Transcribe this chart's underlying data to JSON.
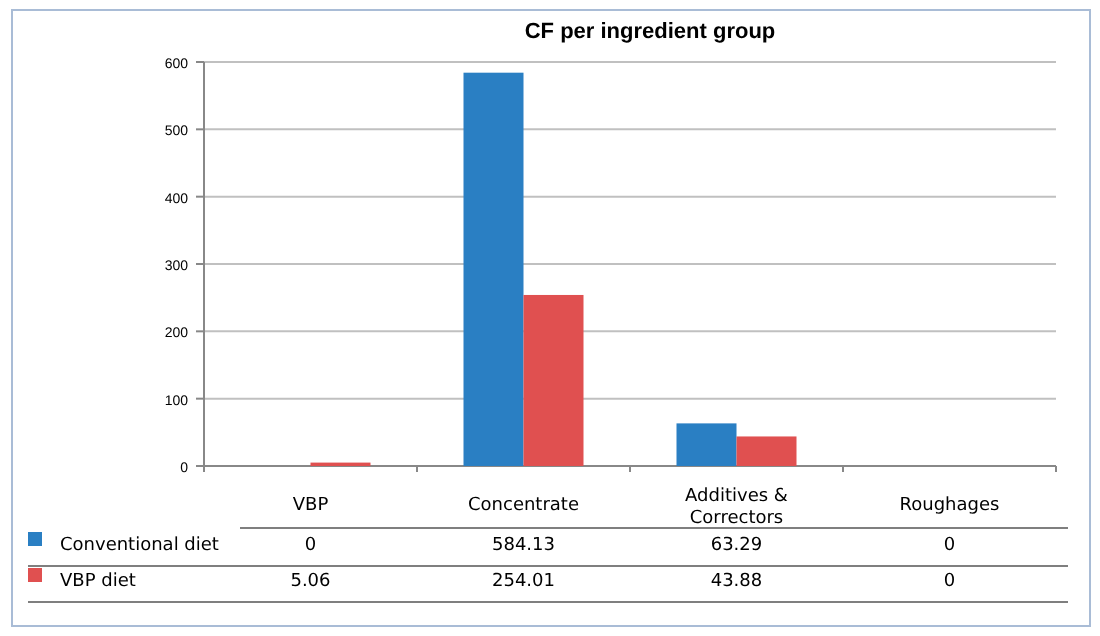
{
  "chart_data": {
    "type": "bar",
    "title": "CF per ingredient group",
    "categories": [
      "VBP",
      "Concentrate",
      "Additives & Correctors",
      "Roughages"
    ],
    "series": [
      {
        "name": "Conventional diet",
        "color": "#2a7fc3",
        "values": [
          0,
          584.13,
          63.29,
          0
        ]
      },
      {
        "name": "VBP diet",
        "color": "#e05050",
        "values": [
          5.06,
          254.01,
          43.88,
          0
        ]
      }
    ],
    "ylim": [
      0,
      600
    ],
    "yticks": [
      0,
      100,
      200,
      300,
      400,
      500,
      600
    ],
    "grid": "y",
    "legend": "bottom left",
    "data_labels": true
  }
}
